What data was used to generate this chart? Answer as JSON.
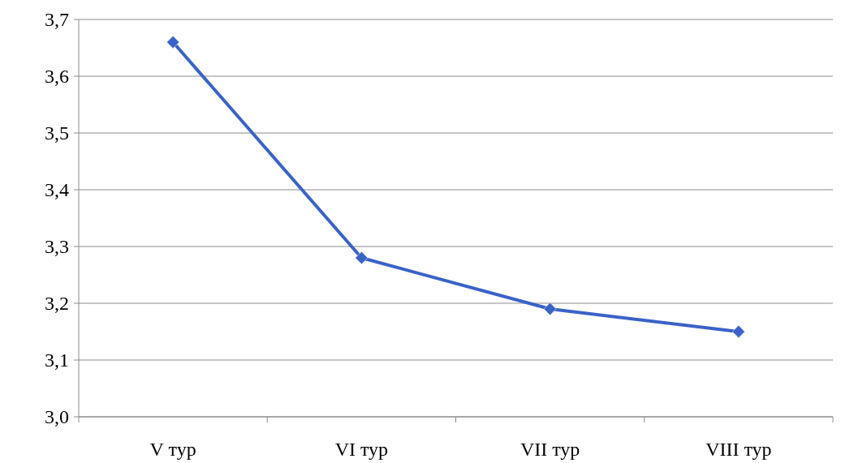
{
  "chart_data": {
    "type": "line",
    "categories": [
      "V тур",
      "VI тур",
      "VII тур",
      "VIII тур"
    ],
    "series": [
      {
        "color": "#3a62c9",
        "values": [
          3.66,
          3.28,
          3.19,
          3.15
        ]
      }
    ],
    "ylim": [
      3.0,
      3.7
    ],
    "yticks": [
      {
        "value": 3.0,
        "label": "3,0"
      },
      {
        "value": 3.1,
        "label": "3,1"
      },
      {
        "value": 3.2,
        "label": "3,2"
      },
      {
        "value": 3.3,
        "label": "3,3"
      },
      {
        "value": 3.4,
        "label": "3,4"
      },
      {
        "value": 3.5,
        "label": "3,5"
      },
      {
        "value": 3.6,
        "label": "3,6"
      },
      {
        "value": 3.7,
        "label": "3,7"
      }
    ],
    "grid": "y",
    "marker": "diamond",
    "line_style": "solid"
  }
}
